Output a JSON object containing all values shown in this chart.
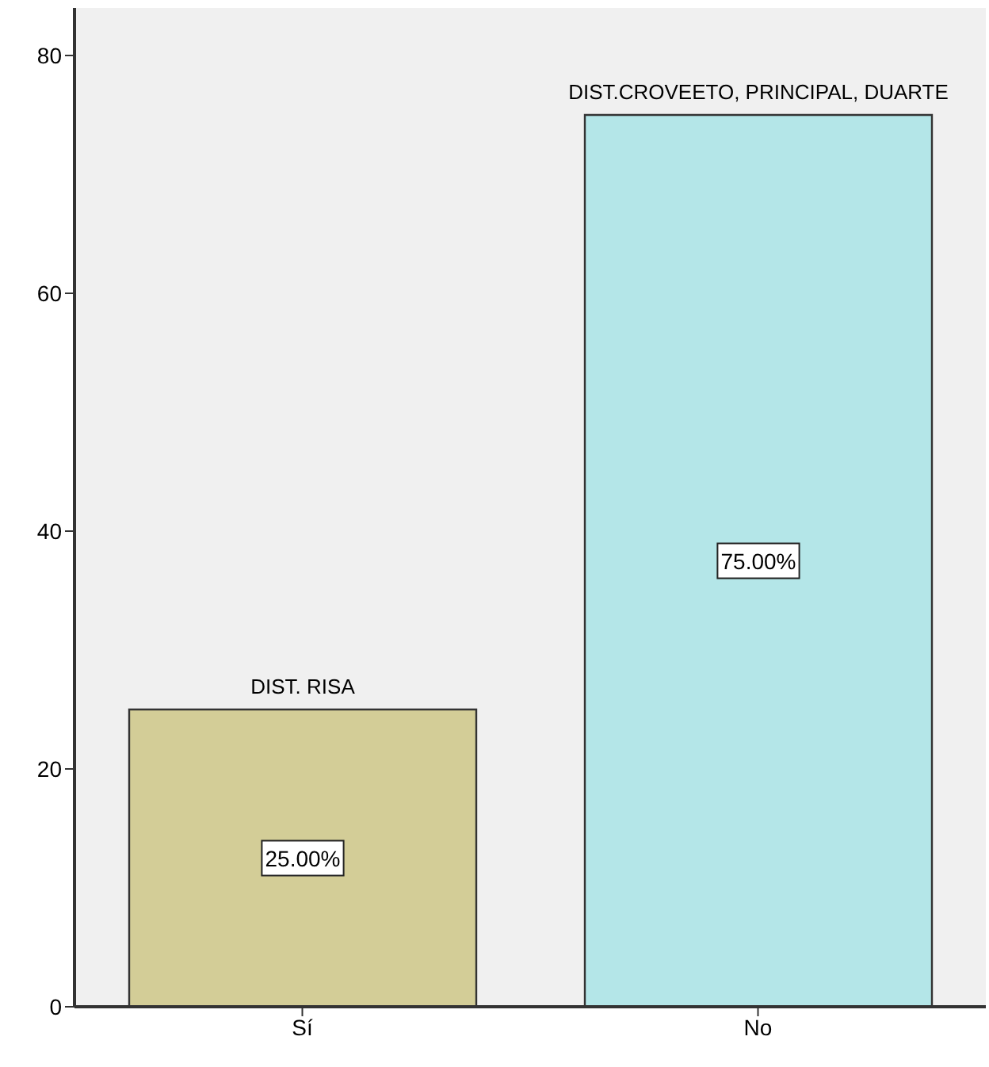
{
  "chart_data": {
    "type": "bar",
    "categories": [
      "Sí",
      "No"
    ],
    "values": [
      25,
      75
    ],
    "colors": [
      "#d3cd97",
      "#b4e6e8"
    ],
    "value_labels": [
      "25.00%",
      "75.00%"
    ],
    "ylim": [
      0,
      84
    ],
    "yticks": [
      0,
      20,
      40,
      60,
      80
    ],
    "grid": false,
    "annotations": [
      {
        "text": "DIST. RISA",
        "x": "Sí",
        "y": 25
      },
      {
        "text": "DIST.CROVEETO, PRINCIPAL, DUARTE",
        "x": "No",
        "y": 75
      }
    ]
  }
}
